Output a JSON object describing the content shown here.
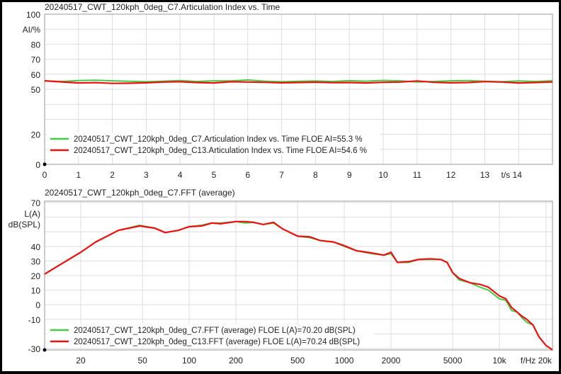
{
  "chart_data": [
    {
      "type": "line",
      "title": "20240517_CWT_120kph_0deg_C7.Articulation Index vs. Time",
      "ylabel": "AI/%",
      "xlabel": "t/s",
      "xlim": [
        0,
        15
      ],
      "ylim": [
        0,
        100
      ],
      "xticks": [
        0,
        1,
        2,
        3,
        4,
        5,
        6,
        7,
        8,
        9,
        10,
        11,
        12,
        13,
        14
      ],
      "yticks": [
        0,
        20,
        50,
        60,
        70,
        80,
        100
      ],
      "grid": true,
      "legend_position": "bottom-left",
      "x": [
        0,
        0.5,
        1,
        1.5,
        2,
        2.5,
        3,
        3.5,
        4,
        4.5,
        5,
        5.5,
        6,
        6.5,
        7,
        7.5,
        8,
        8.5,
        9,
        9.5,
        10,
        10.5,
        11,
        11.5,
        12,
        12.5,
        13,
        13.5,
        14,
        14.5,
        15
      ],
      "series": [
        {
          "name": "20240517_CWT_120kph_0deg_C7.Articulation Index vs. Time FLOE AI=55.3 %",
          "color": "#44cc44",
          "values": [
            55.5,
            55.2,
            55.8,
            56.0,
            55.6,
            55.3,
            55.0,
            55.4,
            55.8,
            55.2,
            55.6,
            55.5,
            56.2,
            55.4,
            55.0,
            55.3,
            55.5,
            55.2,
            55.7,
            55.4,
            55.9,
            55.6,
            54.8,
            55.2,
            55.6,
            55.8,
            55.3,
            55.0,
            55.5,
            55.2,
            55.6
          ]
        },
        {
          "name": "20240517_CWT_120kph_0deg_C13.Articulation Index vs. Time FLOE AI=54.6 %",
          "color": "#ee1111",
          "values": [
            55.6,
            54.9,
            54.2,
            54.4,
            53.9,
            54.0,
            54.3,
            54.8,
            55.0,
            54.5,
            54.2,
            55.0,
            54.8,
            54.6,
            54.3,
            54.5,
            54.7,
            54.4,
            54.5,
            54.2,
            54.6,
            54.8,
            55.5,
            54.6,
            54.3,
            54.5,
            55.1,
            54.8,
            54.2,
            54.5,
            54.9
          ]
        }
      ]
    },
    {
      "type": "line",
      "title": "20240517_CWT_120kph_0deg_C7.FFT (average)",
      "ylabel": "L(A) dB(SPL)",
      "xlabel": "f/Hz",
      "xscale": "log",
      "xlim": [
        11.7,
        22000
      ],
      "ylim": [
        -31,
        71
      ],
      "xticks": [
        "20",
        "50",
        "100",
        "200",
        "500",
        "1000",
        "2000",
        "5000",
        "10k",
        "f/Hz 20k"
      ],
      "xtick_values": [
        20,
        50,
        100,
        200,
        500,
        1000,
        2000,
        5000,
        10000,
        20000
      ],
      "yticks": [
        70,
        40,
        30,
        20,
        10,
        0,
        -10,
        -30
      ],
      "grid": true,
      "legend_position": "bottom-left",
      "x": [
        11.7,
        20,
        25,
        35,
        48,
        60,
        70,
        85,
        100,
        120,
        140,
        160,
        200,
        230,
        260,
        300,
        350,
        400,
        500,
        600,
        700,
        850,
        1000,
        1200,
        1500,
        1800,
        2000,
        2200,
        2600,
        3000,
        3600,
        4200,
        4600,
        5000,
        5500,
        6500,
        7500,
        8500,
        10000,
        11000,
        12000,
        13000,
        14000,
        15000,
        16500,
        18000,
        20000,
        22000
      ],
      "series": [
        {
          "name": "20240517_CWT_120kph_0deg_C7.FFT (average) FLOE L(A)=70.20 dB(SPL)",
          "color": "#44cc44",
          "values": [
            21,
            36,
            43,
            51,
            54.5,
            52.5,
            49.5,
            51,
            53.5,
            54.5,
            56,
            56,
            57,
            56,
            56.5,
            55,
            56,
            52,
            47,
            46,
            44,
            43,
            40,
            37,
            35,
            34,
            35,
            29,
            29,
            31,
            31,
            31,
            29,
            22,
            17,
            15,
            12,
            10,
            4,
            3,
            -4,
            -5,
            -9,
            -12,
            -14,
            -22,
            -28,
            -31
          ]
        },
        {
          "name": "20240517_CWT_120kph_0deg_C13.FFT (average) FLOE L(A)=70.24 dB(SPL)",
          "color": "#ee1111",
          "values": [
            21,
            36,
            43,
            51,
            54,
            52.5,
            49.5,
            51,
            53.5,
            54,
            56,
            55.5,
            57,
            57,
            56.5,
            55,
            56.5,
            52,
            47,
            46.5,
            44,
            43,
            40.5,
            37,
            35.5,
            34,
            36,
            29,
            29.5,
            31,
            31.5,
            31,
            29,
            22,
            18,
            15,
            14,
            12,
            6,
            4,
            -2,
            -5,
            -8,
            -10,
            -14,
            -22,
            -28,
            -31
          ]
        }
      ]
    }
  ]
}
